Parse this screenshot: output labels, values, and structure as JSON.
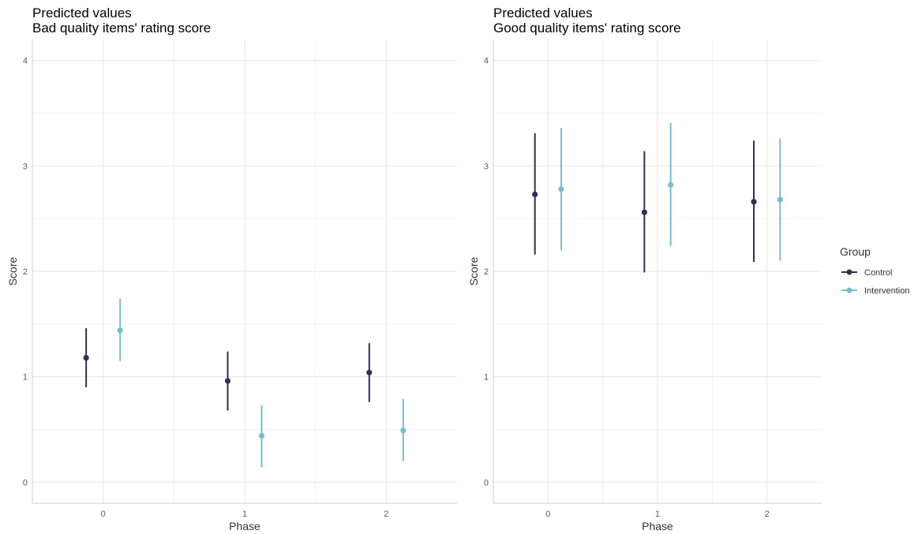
{
  "colors": {
    "Control": "#3b2a55",
    "Intervention": "#76bccf",
    "grid_major": "#e6e6e6",
    "grid_minor": "#f2f2f2",
    "axis_line": "#cfcfcf"
  },
  "legend": {
    "title": "Group",
    "items": [
      "Control",
      "Intervention"
    ]
  },
  "chart_data": [
    {
      "type": "scatter",
      "title": "Predicted values",
      "subtitle": "Bad quality items' rating score",
      "xlabel": "Phase",
      "ylabel": "Score",
      "categories": [
        "0",
        "1",
        "2"
      ],
      "yticks": [
        0,
        1,
        2,
        3,
        4
      ],
      "ylim": [
        -0.2,
        4.2
      ],
      "grid": true,
      "legend": "right",
      "series": [
        {
          "name": "Control",
          "values": [
            1.18,
            0.96,
            1.04
          ],
          "lower": [
            0.9,
            0.68,
            0.76
          ],
          "upper": [
            1.46,
            1.24,
            1.32
          ]
        },
        {
          "name": "Intervention",
          "values": [
            1.44,
            0.44,
            0.49
          ],
          "lower": [
            1.15,
            0.14,
            0.2
          ],
          "upper": [
            1.74,
            0.73,
            0.79
          ]
        }
      ]
    },
    {
      "type": "scatter",
      "title": "Predicted values",
      "subtitle": "Good quality items' rating score",
      "xlabel": "Phase",
      "ylabel": "Score",
      "categories": [
        "0",
        "1",
        "2"
      ],
      "yticks": [
        0,
        1,
        2,
        3,
        4
      ],
      "ylim": [
        -0.2,
        4.2
      ],
      "grid": true,
      "legend": "right",
      "series": [
        {
          "name": "Control",
          "values": [
            2.73,
            2.56,
            2.66
          ],
          "lower": [
            2.16,
            1.99,
            2.09
          ],
          "upper": [
            3.31,
            3.14,
            3.24
          ]
        },
        {
          "name": "Intervention",
          "values": [
            2.78,
            2.82,
            2.68
          ],
          "lower": [
            2.2,
            2.24,
            2.1
          ],
          "upper": [
            3.36,
            3.41,
            3.26
          ]
        }
      ]
    }
  ]
}
